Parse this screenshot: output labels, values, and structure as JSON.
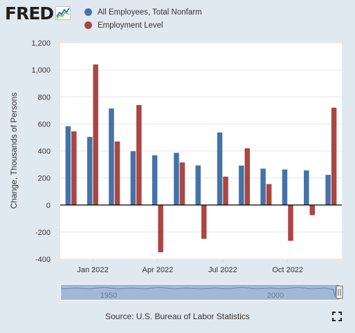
{
  "header": {
    "logo_text": "FRED",
    "logo_icon": "fred-graph-icon"
  },
  "legend": [
    {
      "label": "All Employees, Total Nonfarm",
      "color": "#4572a7"
    },
    {
      "label": "Employment Level",
      "color": "#aa4643"
    }
  ],
  "footer": {
    "source": "Source: U.S. Bureau of Labor Statistics",
    "fullscreen_icon": "fullscreen-icon"
  },
  "navigator": {
    "labels": [
      "1950",
      "2000"
    ]
  },
  "colors": {
    "background": "#e1e9f0",
    "plot_background": "#ffffff",
    "series1": "#4572a7",
    "series2": "#aa4643",
    "navigator": "#a2b8d8"
  },
  "chart_data": {
    "type": "bar",
    "ylabel": "Change, Thousands of Persons",
    "ylim": [
      -400,
      1200
    ],
    "yticks": [
      -400,
      -200,
      0,
      200,
      400,
      600,
      800,
      1000,
      1200
    ],
    "ytick_labels": [
      "-400",
      "-200",
      "0",
      "200",
      "400",
      "600",
      "800",
      "1,000",
      "1,200"
    ],
    "grid": true,
    "legend_position": "top",
    "x": [
      "2021-12",
      "2022-01",
      "2022-02",
      "2022-03",
      "2022-04",
      "2022-05",
      "2022-06",
      "2022-07",
      "2022-08",
      "2022-09",
      "2022-10",
      "2022-11",
      "2022-12"
    ],
    "xtick_labels": [
      {
        "x": "2022-01",
        "label": "Jan 2022"
      },
      {
        "x": "2022-04",
        "label": "Apr 2022"
      },
      {
        "x": "2022-07",
        "label": "Jul 2022"
      },
      {
        "x": "2022-10",
        "label": "Oct 2022"
      }
    ],
    "series": [
      {
        "name": "All Employees, Total Nonfarm",
        "color": "#4572a7",
        "values": [
          583,
          504,
          714,
          398,
          368,
          386,
          293,
          537,
          292,
          269,
          263,
          256,
          223
        ]
      },
      {
        "name": "Employment Level",
        "color": "#aa4643",
        "values": [
          545,
          1040,
          470,
          740,
          -350,
          315,
          -250,
          210,
          420,
          155,
          -265,
          -75,
          720
        ]
      }
    ]
  }
}
